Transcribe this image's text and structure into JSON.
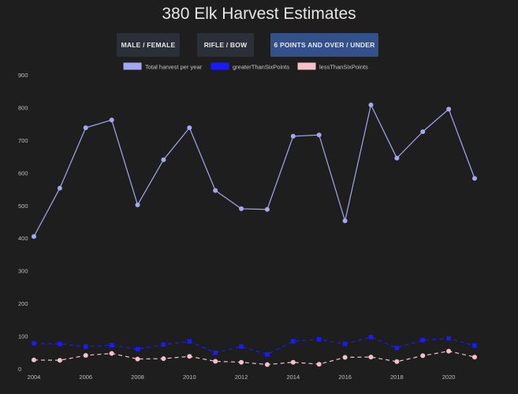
{
  "page": {
    "title": "380 Elk Harvest Estimates",
    "buttons": [
      {
        "label": "MALE / FEMALE",
        "active": false
      },
      {
        "label": "RIFLE / BOW",
        "active": false
      },
      {
        "label": "6 POINTS AND OVER / UNDER",
        "active": true
      }
    ]
  },
  "chart_data": {
    "type": "line",
    "title": "380 Elk Harvest Estimates",
    "x": [
      2004,
      2005,
      2006,
      2007,
      2008,
      2009,
      2010,
      2011,
      2012,
      2013,
      2014,
      2015,
      2016,
      2017,
      2018,
      2019,
      2020,
      2021
    ],
    "x_ticks": [
      2004,
      2006,
      2008,
      2010,
      2012,
      2014,
      2016,
      2018,
      2020
    ],
    "y_ticks": [
      0,
      100,
      200,
      300,
      400,
      500,
      600,
      700,
      800,
      900
    ],
    "ylim": [
      0,
      900
    ],
    "grid": false,
    "legend_position": "top",
    "series": [
      {
        "name": "Total harvest per year",
        "color": "#a4a8f0",
        "dashed": false,
        "values": [
          405,
          553,
          738,
          762,
          502,
          640,
          738,
          546,
          490,
          488,
          712,
          716,
          453,
          808,
          645,
          726,
          795,
          583
        ]
      },
      {
        "name": "greaterThanSixPoints",
        "color": "#1a1aff",
        "dashed": true,
        "values": [
          78,
          76,
          68,
          72,
          60,
          74,
          84,
          49,
          68,
          44,
          84,
          90,
          76,
          97,
          64,
          88,
          93,
          71
        ]
      },
      {
        "name": "lessThanSixPoints",
        "color": "#f4c0cb",
        "dashed": true,
        "values": [
          27,
          26,
          41,
          47,
          30,
          31,
          38,
          23,
          20,
          13,
          20,
          14,
          35,
          36,
          22,
          40,
          54,
          36
        ]
      }
    ]
  }
}
